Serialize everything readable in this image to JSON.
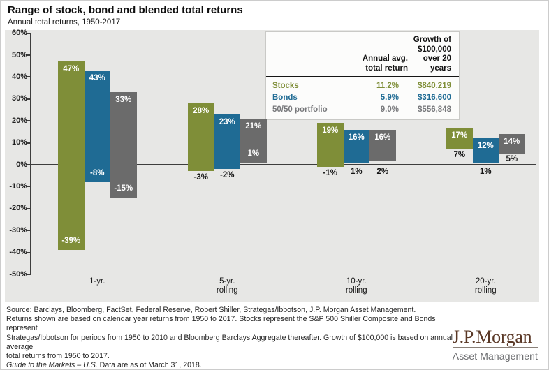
{
  "title": "Range of stock, bond and blended total returns",
  "subtitle": "Annual total returns, 1950-2017",
  "colors": {
    "stocks": "#7f8e38",
    "bonds": "#1f6b94",
    "blend": "#6b6b6b",
    "panel_bg": "#e7e7e5",
    "axis": "#3d3d3d",
    "logo_brown": "#5a3826"
  },
  "legend_table": {
    "columns": [
      {
        "line1": "Annual avg.",
        "line2": "total return"
      },
      {
        "line1": "Growth of $100,000",
        "line2": "over 20 years"
      }
    ],
    "rows": [
      {
        "label": "Stocks",
        "avg_return": "11.2%",
        "growth": "$840,219"
      },
      {
        "label": "Bonds",
        "avg_return": "5.9%",
        "growth": "$316,600"
      },
      {
        "label": "50/50 portfolio",
        "avg_return": "9.0%",
        "growth": "$556,848"
      }
    ]
  },
  "chart_data": {
    "type": "bar",
    "title": "Range of stock, bond and blended total returns",
    "subtitle": "Annual total returns, 1950-2017",
    "categories": [
      "1-yr.",
      "5-yr.\nrolling",
      "10-yr.\nrolling",
      "20-yr.\nrolling"
    ],
    "ylim": [
      -50,
      60
    ],
    "ytick_step": 10,
    "yticks": [
      60,
      50,
      40,
      30,
      20,
      10,
      0,
      -10,
      -20,
      -30,
      -40,
      -50
    ],
    "grid": false,
    "legend_position": "top-right-table",
    "series": [
      {
        "name": "Stocks",
        "color_key": "stocks",
        "ranges": [
          [
            47,
            -39
          ],
          [
            28,
            -3
          ],
          [
            19,
            -1
          ],
          [
            17,
            7
          ]
        ],
        "min_label_pos": [
          "inside",
          "below",
          "below",
          "below"
        ]
      },
      {
        "name": "Bonds",
        "color_key": "bonds",
        "ranges": [
          [
            43,
            -8
          ],
          [
            23,
            -2
          ],
          [
            16,
            1
          ],
          [
            12,
            1
          ]
        ],
        "min_label_pos": [
          "inside",
          "below",
          "below",
          "below"
        ]
      },
      {
        "name": "50/50 portfolio",
        "color_key": "blend",
        "ranges": [
          [
            33,
            -15
          ],
          [
            21,
            1
          ],
          [
            16,
            2
          ],
          [
            14,
            5
          ]
        ],
        "min_label_pos": [
          "inside",
          "inside",
          "below",
          "below"
        ]
      }
    ]
  },
  "source": {
    "lines": [
      "Source: Barclays, Bloomberg, FactSet, Federal Reserve, Robert Shiller, Strategas/Ibbotson, J.P. Morgan Asset Management.",
      "Returns shown are based on calendar year returns from 1950 to 2017. Stocks represent the S&P 500 Shiller Composite and Bonds represent",
      "Strategas/Ibbotson for periods from 1950 to 2010 and Bloomberg Barclays Aggregate thereafter. Growth of $100,000 is based on annual average",
      "total returns from 1950 to 2017."
    ],
    "footnote_italic": "Guide to the Markets – U.S.",
    "footnote_rest": " Data are as of March 31, 2018."
  },
  "logo": {
    "name": "J.P.Morgan",
    "subtitle": "Asset Management"
  }
}
